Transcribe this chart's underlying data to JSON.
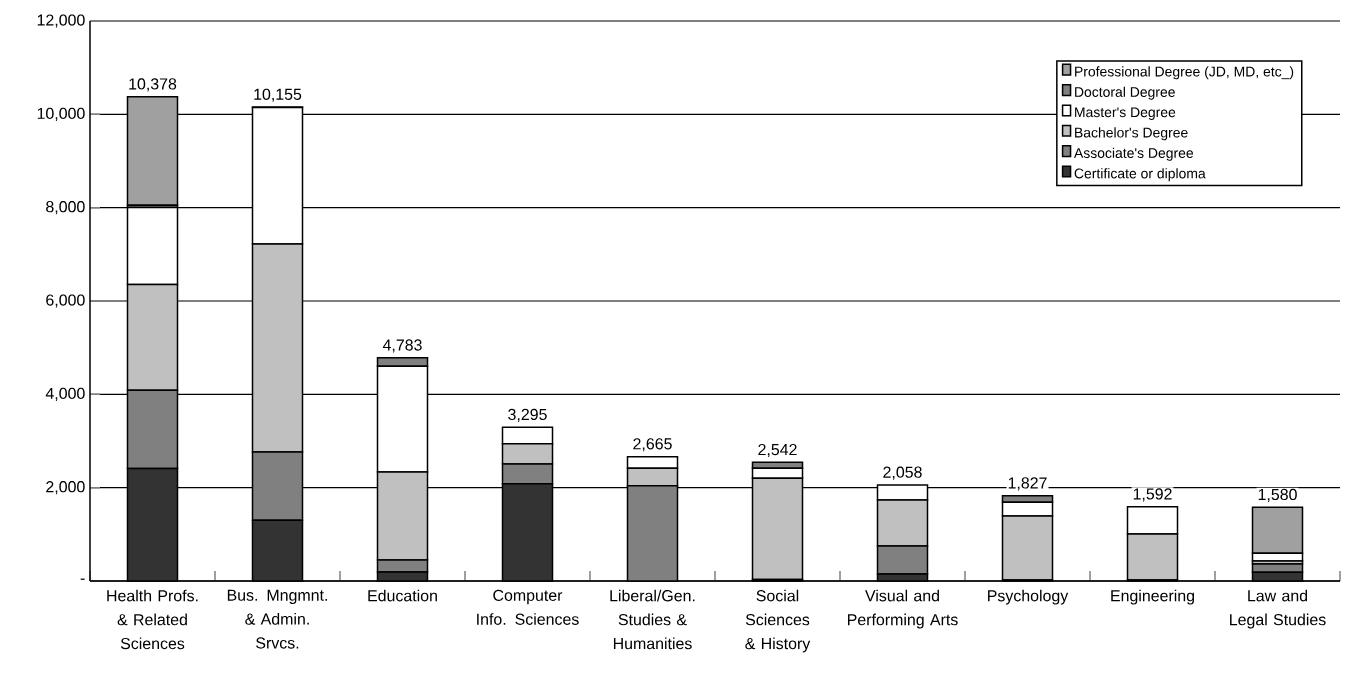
{
  "chart_data": {
    "type": "bar",
    "stacked": true,
    "categories": [
      "Health Profs. & Related Sciences",
      "Bus. Mngmnt. & Admin. Srvcs.",
      "Education",
      "Computer Info. Sciences",
      "Liberal/Gen. Studies & Humanities",
      "Social Sciences & History",
      "Visual and Performing Arts",
      "Psychology",
      "Engineering",
      "Law and Legal Studies"
    ],
    "series": [
      {
        "name": "Certificate or diploma",
        "color": "#333333",
        "values": [
          2409,
          1300,
          191,
          2085,
          0,
          30,
          150,
          20,
          20,
          186
        ]
      },
      {
        "name": "Associate's Degree",
        "color": "#808080",
        "values": [
          1678,
          1462,
          259,
          422,
          2042,
          0,
          600,
          0,
          0,
          178
        ]
      },
      {
        "name": "Bachelor's Degree",
        "color": "#c0c0c0",
        "values": [
          2267,
          4458,
          1886,
          435,
          373,
          2171,
          986,
          1373,
          987,
          65
        ]
      },
      {
        "name": "Master's Degree",
        "color": "#ffffff",
        "values": [
          1648,
          2925,
          2267,
          353,
          250,
          214,
          322,
          294,
          585,
          165
        ]
      },
      {
        "name": "Doctoral Degree",
        "color": "#808080",
        "values": [
          51,
          10,
          180,
          0,
          0,
          127,
          0,
          140,
          0,
          0
        ]
      },
      {
        "name": "Professional Degree (JD, MD, etc_)",
        "color": "#a0a0a0",
        "values": [
          2325,
          0,
          0,
          0,
          0,
          0,
          0,
          0,
          0,
          986
        ]
      }
    ],
    "totals": [
      "10,378",
      "10,155",
      "4,783",
      "3,295",
      "2,665",
      "2,542",
      "2,058",
      "1,827",
      "1,592",
      "1,580"
    ],
    "ylim": [
      0,
      12000
    ],
    "yticks": [
      {
        "value": 0,
        "label": "-"
      },
      {
        "value": 2000,
        "label": "2,000"
      },
      {
        "value": 4000,
        "label": "4,000"
      },
      {
        "value": 6000,
        "label": "6,000"
      },
      {
        "value": 8000,
        "label": "8,000"
      },
      {
        "value": 10000,
        "label": "10,000"
      },
      {
        "value": 12000,
        "label": "12,000"
      }
    ],
    "grid": "y",
    "legend": "top right"
  }
}
